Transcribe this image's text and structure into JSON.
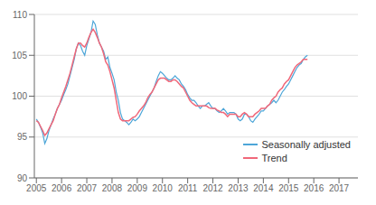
{
  "chart_data": {
    "type": "line",
    "title": "",
    "xlabel": "",
    "ylabel": "",
    "x": [
      2005,
      2005.0833333333333,
      2005.1666666666667,
      2005.25,
      2005.3333333333333,
      2005.4166666666667,
      2005.5,
      2005.5833333333333,
      2005.6666666666667,
      2005.75,
      2005.8333333333333,
      2005.9166666666667,
      2006,
      2006.0833333333333,
      2006.1666666666667,
      2006.25,
      2006.3333333333333,
      2006.4166666666667,
      2006.5,
      2006.5833333333333,
      2006.6666666666667,
      2006.75,
      2006.8333333333333,
      2006.9166666666667,
      2007,
      2007.0833333333333,
      2007.1666666666667,
      2007.25,
      2007.3333333333333,
      2007.4166666666667,
      2007.5,
      2007.5833333333333,
      2007.6666666666667,
      2007.75,
      2007.8333333333333,
      2007.9166666666667,
      2008,
      2008.0833333333333,
      2008.1666666666667,
      2008.25,
      2008.3333333333333,
      2008.4166666666667,
      2008.5,
      2008.5833333333333,
      2008.6666666666667,
      2008.75,
      2008.8333333333333,
      2008.9166666666667,
      2009,
      2009.0833333333333,
      2009.1666666666667,
      2009.25,
      2009.3333333333333,
      2009.4166666666667,
      2009.5,
      2009.5833333333333,
      2009.6666666666667,
      2009.75,
      2009.8333333333333,
      2009.9166666666667,
      2010,
      2010.0833333333333,
      2010.1666666666667,
      2010.25,
      2010.3333333333333,
      2010.4166666666667,
      2010.5,
      2010.5833333333333,
      2010.6666666666667,
      2010.75,
      2010.8333333333333,
      2010.9166666666667,
      2011,
      2011.0833333333333,
      2011.1666666666667,
      2011.25,
      2011.3333333333333,
      2011.4166666666667,
      2011.5,
      2011.5833333333333,
      2011.6666666666667,
      2011.75,
      2011.8333333333333,
      2011.9166666666667,
      2012,
      2012.0833333333333,
      2012.1666666666667,
      2012.25,
      2012.3333333333333,
      2012.4166666666667,
      2012.5,
      2012.5833333333333,
      2012.6666666666667,
      2012.75,
      2012.8333333333333,
      2012.9166666666667,
      2013,
      2013.0833333333333,
      2013.1666666666667,
      2013.25,
      2013.3333333333333,
      2013.4166666666667,
      2013.5,
      2013.5833333333333,
      2013.6666666666667,
      2013.75,
      2013.8333333333333,
      2013.9166666666667,
      2014,
      2014.0833333333333,
      2014.1666666666667,
      2014.25,
      2014.3333333333333,
      2014.4166666666667,
      2014.5,
      2014.5833333333333,
      2014.6666666666667,
      2014.75,
      2014.8333333333333,
      2014.9166666666667,
      2015,
      2015.0833333333333,
      2015.1666666666667,
      2015.25,
      2015.3333333333333,
      2015.4166666666667,
      2015.5,
      2015.5833333333333,
      2015.6666666666667,
      2015.75
    ],
    "series": [
      {
        "name": "Seasonally adjusted",
        "color": "#4da6d8",
        "values": [
          97.2,
          96.8,
          96.2,
          95.5,
          94.2,
          94.8,
          95.8,
          96.5,
          97.2,
          97.8,
          98.5,
          99.0,
          99.5,
          100.2,
          100.8,
          101.5,
          102.5,
          103.5,
          104.5,
          105.8,
          106.5,
          106.2,
          105.5,
          105.0,
          106.2,
          107.0,
          107.8,
          109.2,
          108.8,
          107.5,
          106.5,
          106.0,
          105.5,
          104.5,
          104.8,
          103.5,
          102.8,
          102.0,
          100.5,
          99.5,
          98.0,
          97.2,
          97.0,
          96.8,
          96.5,
          96.8,
          97.2,
          97.0,
          97.2,
          97.5,
          98.0,
          98.5,
          99.0,
          99.5,
          100.0,
          100.5,
          101.0,
          101.8,
          102.5,
          103.0,
          102.8,
          102.5,
          102.2,
          102.0,
          102.0,
          102.2,
          102.5,
          102.2,
          102.0,
          101.5,
          101.2,
          100.8,
          100.2,
          99.8,
          99.5,
          99.5,
          99.2,
          98.8,
          98.5,
          98.8,
          98.8,
          99.0,
          99.2,
          98.8,
          98.5,
          98.5,
          98.2,
          98.0,
          98.2,
          98.5,
          98.2,
          97.8,
          98.0,
          98.0,
          98.0,
          97.8,
          97.2,
          97.0,
          97.2,
          97.8,
          97.8,
          97.5,
          97.0,
          96.8,
          97.2,
          97.5,
          97.8,
          98.2,
          98.2,
          98.5,
          98.8,
          99.0,
          99.2,
          99.5,
          99.2,
          99.5,
          100.0,
          100.5,
          100.8,
          101.2,
          101.5,
          102.0,
          102.5,
          103.0,
          103.5,
          103.8,
          104.0,
          104.5,
          104.8,
          105.0
        ]
      },
      {
        "name": "Trend",
        "color": "#f0687a",
        "values": [
          97.0,
          96.8,
          96.3,
          95.8,
          95.2,
          95.5,
          96.0,
          96.5,
          97.0,
          97.8,
          98.5,
          99.0,
          99.8,
          100.5,
          101.2,
          102.0,
          102.8,
          103.8,
          104.8,
          105.8,
          106.5,
          106.5,
          106.2,
          106.0,
          106.5,
          107.2,
          107.8,
          108.2,
          107.8,
          107.2,
          106.5,
          106.0,
          105.2,
          104.2,
          103.8,
          103.0,
          102.0,
          101.0,
          99.5,
          98.0,
          97.2,
          97.0,
          97.0,
          97.0,
          97.0,
          97.2,
          97.4,
          97.5,
          97.8,
          98.2,
          98.5,
          98.8,
          99.2,
          99.8,
          100.2,
          100.5,
          101.0,
          101.5,
          102.0,
          102.2,
          102.2,
          102.2,
          102.0,
          101.8,
          101.8,
          102.0,
          102.0,
          101.8,
          101.5,
          101.2,
          101.0,
          100.5,
          100.0,
          99.5,
          99.2,
          99.0,
          98.8,
          98.8,
          98.8,
          98.8,
          98.8,
          98.8,
          98.6,
          98.5,
          98.5,
          98.5,
          98.3,
          98.2,
          98.0,
          98.0,
          97.8,
          97.5,
          97.8,
          97.8,
          97.8,
          97.8,
          97.5,
          97.5,
          97.8,
          98.0,
          97.8,
          97.5,
          97.5,
          97.5,
          97.8,
          98.0,
          98.2,
          98.5,
          98.5,
          98.5,
          98.8,
          99.0,
          99.5,
          99.8,
          100.0,
          100.5,
          100.8,
          101.0,
          101.5,
          101.8,
          102.0,
          102.5,
          103.0,
          103.5,
          103.8,
          104.0,
          104.2,
          104.5,
          104.5,
          104.5
        ]
      }
    ],
    "xlim": [
      2004.92,
      2017.75
    ],
    "xticks": [
      2005,
      2006,
      2007,
      2008,
      2009,
      2010,
      2011,
      2012,
      2013,
      2014,
      2015,
      2016,
      2017
    ],
    "ylim": [
      90,
      110
    ],
    "yticks": [
      90,
      95,
      100,
      105,
      110
    ],
    "grid": "y",
    "legend": "lower right"
  }
}
